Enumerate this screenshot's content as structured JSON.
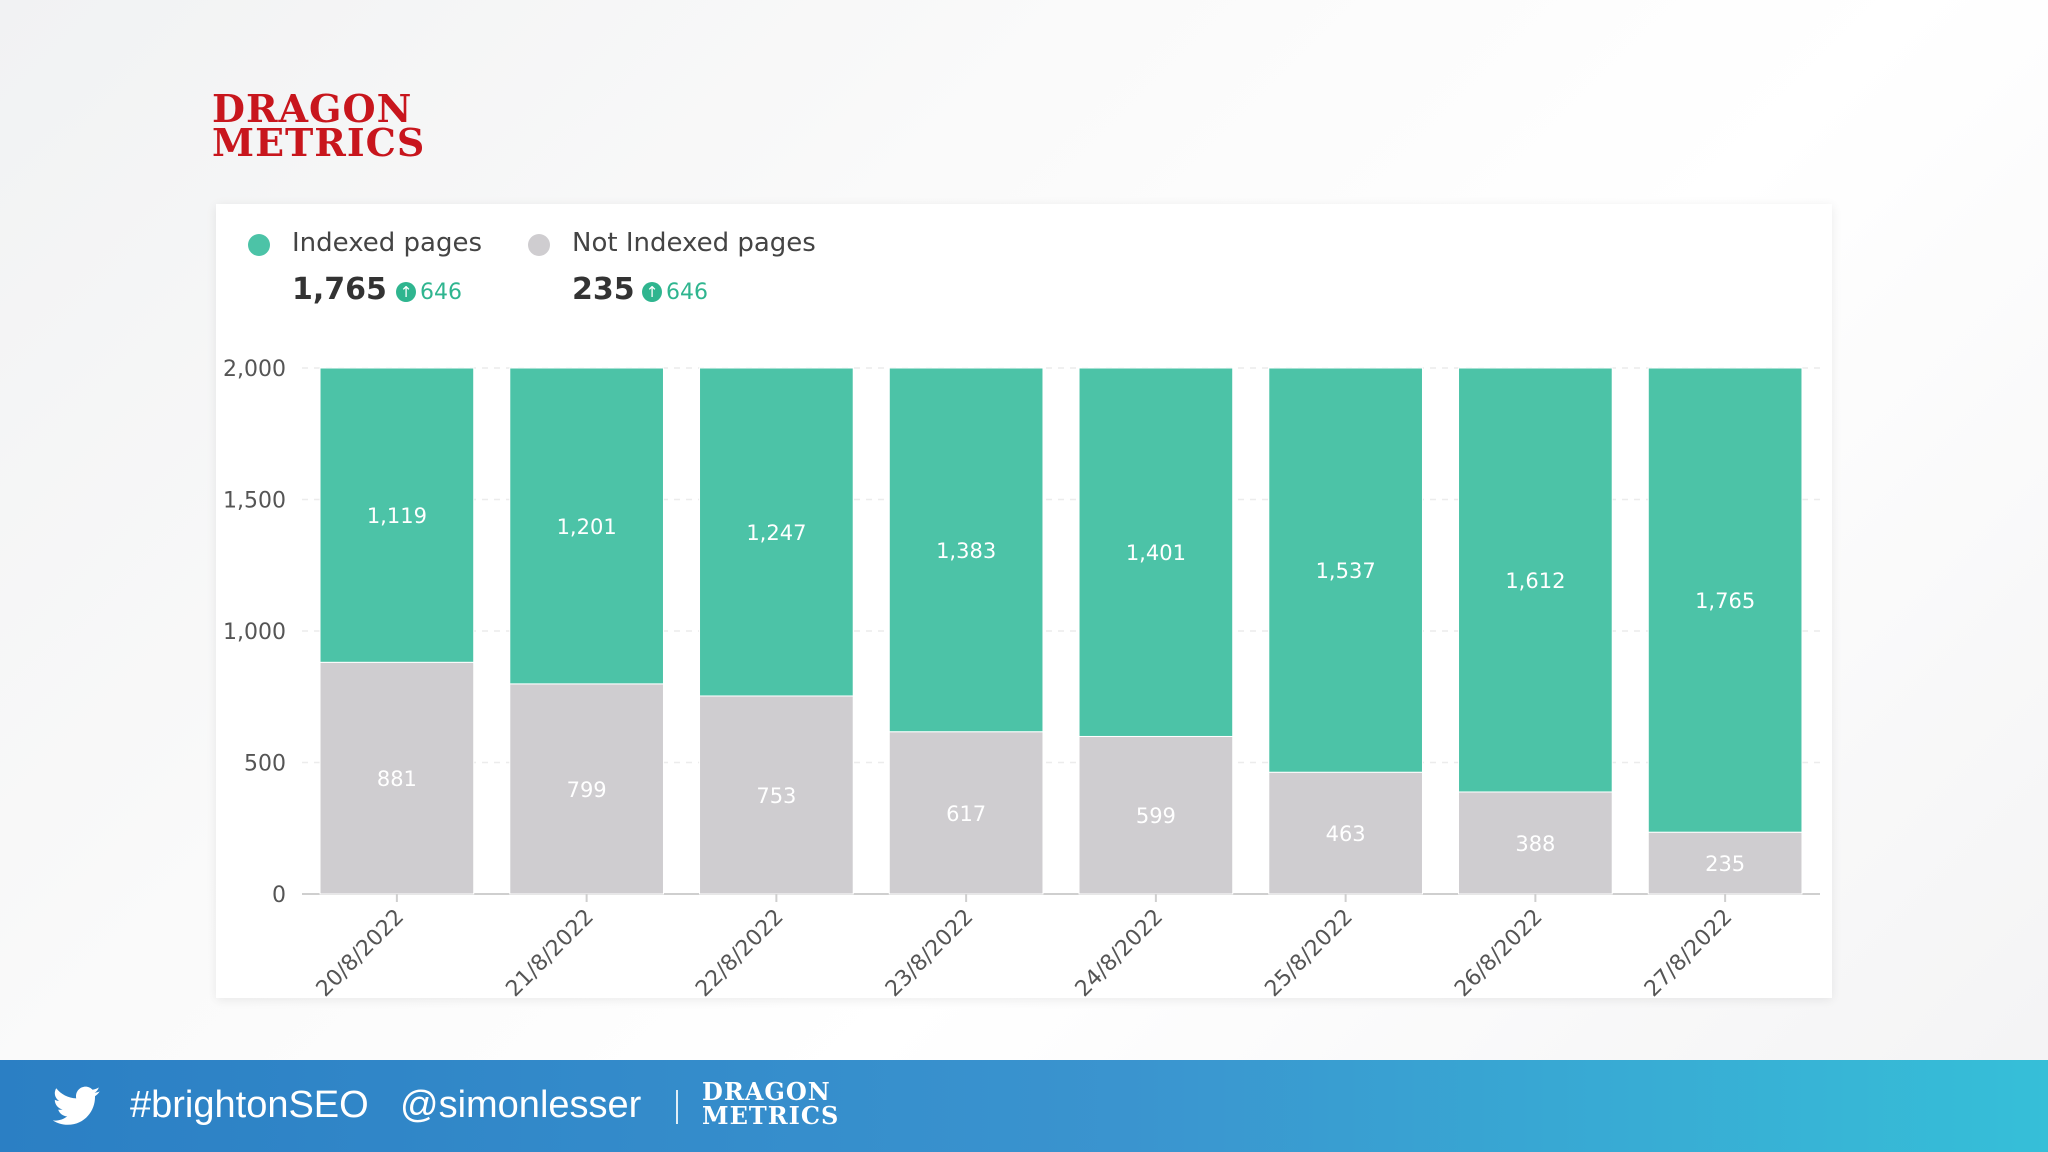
{
  "brand": {
    "line1": "DRAGON",
    "line2": "METRICS"
  },
  "legend": [
    {
      "label": "Indexed pages",
      "value": "1,765",
      "delta": "646",
      "color": "#4cc3a7"
    },
    {
      "label": "Not Indexed pages",
      "value": "235",
      "delta": "646",
      "color": "#cfcdd0"
    }
  ],
  "chart_data": {
    "type": "bar",
    "stacked": true,
    "categories": [
      "20/8/2022",
      "21/8/2022",
      "22/8/2022",
      "23/8/2022",
      "24/8/2022",
      "25/8/2022",
      "26/8/2022",
      "27/8/2022"
    ],
    "series": [
      {
        "name": "Not Indexed pages",
        "color": "#cfcdd0",
        "values": [
          881,
          799,
          753,
          617,
          599,
          463,
          388,
          235
        ],
        "labels": [
          "881",
          "799",
          "753",
          "617",
          "599",
          "463",
          "388",
          "235"
        ]
      },
      {
        "name": "Indexed pages",
        "color": "#4cc3a7",
        "values": [
          1119,
          1201,
          1247,
          1383,
          1401,
          1537,
          1612,
          1765
        ],
        "labels": [
          "1,119",
          "1,201",
          "1,247",
          "1,383",
          "1,401",
          "1,537",
          "1,612",
          "1,765"
        ]
      }
    ],
    "yticks": [
      0,
      500,
      1000,
      1500,
      2000
    ],
    "ytick_labels": [
      "0",
      "500",
      "1,000",
      "1,500",
      "2,000"
    ],
    "ylim": [
      0,
      2000
    ],
    "title": "",
    "xlabel": "",
    "ylabel": "",
    "grid": true,
    "legend_position": "top-left"
  },
  "footer": {
    "hashtag": "#brightonSEO",
    "handle": "@simonlesser",
    "logo_line1": "DRAGON",
    "logo_line2": "METRICS"
  }
}
